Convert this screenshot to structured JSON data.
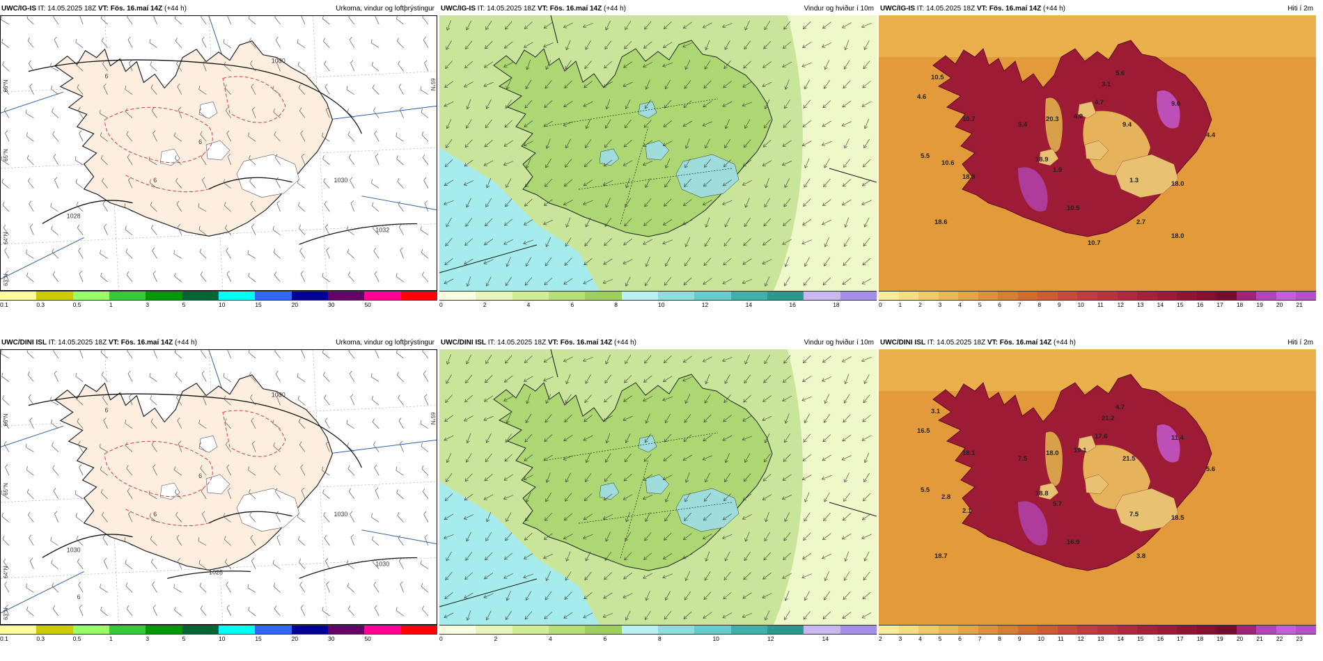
{
  "rows": [
    {
      "model": "UWC/IG-IS",
      "panels": [
        {
          "kind": "precip",
          "title_right": "Úrkoma, vindur og loftþrýstingur",
          "isobars": [
            "1030",
            "1030",
            "1028",
            "1032"
          ],
          "dashed_labels": [
            "6",
            "6",
            "6"
          ],
          "edge_labels": [
            "66°N",
            "65°N",
            "64°N",
            "63°N",
            "65°N"
          ]
        },
        {
          "kind": "wind",
          "title_right": "Vindur og hviður í 10m"
        },
        {
          "kind": "temp",
          "title_right": "Hiti í 2m",
          "temps": [
            "10.5",
            "4.6",
            "10.7",
            "9.4",
            "20.3",
            "4.0",
            "4.7",
            "3.1",
            "5.6",
            "9.4",
            "9.0",
            "4.4",
            "18.9",
            "5.5",
            "10.6",
            "18.9",
            "1.9",
            "1.3",
            "18.0",
            "10.5",
            "18.6",
            "2.7",
            "18.0",
            "10.7"
          ]
        }
      ],
      "colorbars": {
        "precip": {
          "labels": [
            "0.1",
            "0.3",
            "0.5",
            "1",
            "3",
            "5",
            "10",
            "15",
            "20",
            "30",
            "50"
          ]
        },
        "wind": {
          "labels": [
            "0",
            "2",
            "4",
            "6",
            "8",
            "10",
            "12",
            "14",
            "16",
            "18"
          ]
        },
        "temp": {
          "labels": [
            "0",
            "1",
            "2",
            "3",
            "4",
            "5",
            "6",
            "7",
            "8",
            "9",
            "10",
            "11",
            "12",
            "13",
            "14",
            "15",
            "16",
            "17",
            "18",
            "19",
            "20",
            "21"
          ]
        }
      }
    },
    {
      "model": "UWC/DINI ISL",
      "panels": [
        {
          "kind": "precip",
          "title_right": "Úrkoma, vindur og loftþrýstingur",
          "isobars": [
            "1030",
            "1030",
            "1030",
            "1030",
            "1028"
          ],
          "dashed_labels": [
            "6",
            "6",
            "6",
            "6"
          ],
          "edge_labels": [
            "66°N",
            "65°N",
            "64°N",
            "63°N",
            "65°N"
          ]
        },
        {
          "kind": "wind",
          "title_right": "Vindur og hviður í 10m"
        },
        {
          "kind": "temp",
          "title_right": "Hiti í 2m",
          "temps": [
            "3.1",
            "16.5",
            "18.1",
            "7.5",
            "18.0",
            "19.1",
            "17.6",
            "21.2",
            "4.7",
            "21.5",
            "11.4",
            "5.6",
            "18.8",
            "5.5",
            "2.8",
            "2.1",
            "5.7",
            "7.5",
            "18.5",
            "16.9",
            "18.7",
            "3.8"
          ]
        }
      ],
      "colorbars": {
        "precip": {
          "labels": [
            "0.1",
            "0.3",
            "0.5",
            "1",
            "3",
            "5",
            "10",
            "15",
            "20",
            "30",
            "50"
          ]
        },
        "wind": {
          "labels": [
            "0",
            "2",
            "4",
            "6",
            "8",
            "10",
            "12",
            "14"
          ]
        },
        "temp": {
          "labels": [
            "2",
            "3",
            "4",
            "5",
            "6",
            "7",
            "8",
            "9",
            "10",
            "11",
            "12",
            "13",
            "14",
            "15",
            "16",
            "17",
            "18",
            "19",
            "20",
            "21",
            "22",
            "23"
          ]
        }
      }
    }
  ],
  "header": {
    "it_prefix": "IT:",
    "it_value": "14.05.2025 18Z",
    "vt_prefix": "VT:",
    "vt_value": "Fös. 16.maí 14Z",
    "lead": "(+44 h)"
  },
  "colors": {
    "precip_bins": [
      "#ffff99",
      "#cccc00",
      "#99ff66",
      "#33cc33",
      "#009900",
      "#006633",
      "#00ffff",
      "#3366ff",
      "#000099",
      "#660066",
      "#ff0099",
      "#ff0000"
    ],
    "wind_bins": [
      "#fafde0",
      "#eaf5b8",
      "#d3ec98",
      "#b9de78",
      "#9fce5c",
      "#b8f2f2",
      "#8fdede",
      "#66cccc",
      "#3fb1ab",
      "#2a9a8f",
      "#c9b8f0",
      "#a48ee8"
    ],
    "temp_bins": [
      "#f9ed9a",
      "#f5df80",
      "#f0cc66",
      "#ebba55",
      "#e5a645",
      "#dc9138",
      "#d67f2e",
      "#d06b28",
      "#cc5c32",
      "#c84a3a",
      "#c23c3d",
      "#b9323c",
      "#b0293d",
      "#a6203a",
      "#9c1a35",
      "#911531",
      "#85102d",
      "#7a0c2b",
      "#a3227a",
      "#b344b5",
      "#c45ed8",
      "#b44fc9"
    ],
    "land_tint": "#fdeee0",
    "sea_wind": "#a6ecec",
    "land_wind": "#acd772",
    "temp_sea": "#e39a3a",
    "temp_land": "#9e1b35"
  }
}
